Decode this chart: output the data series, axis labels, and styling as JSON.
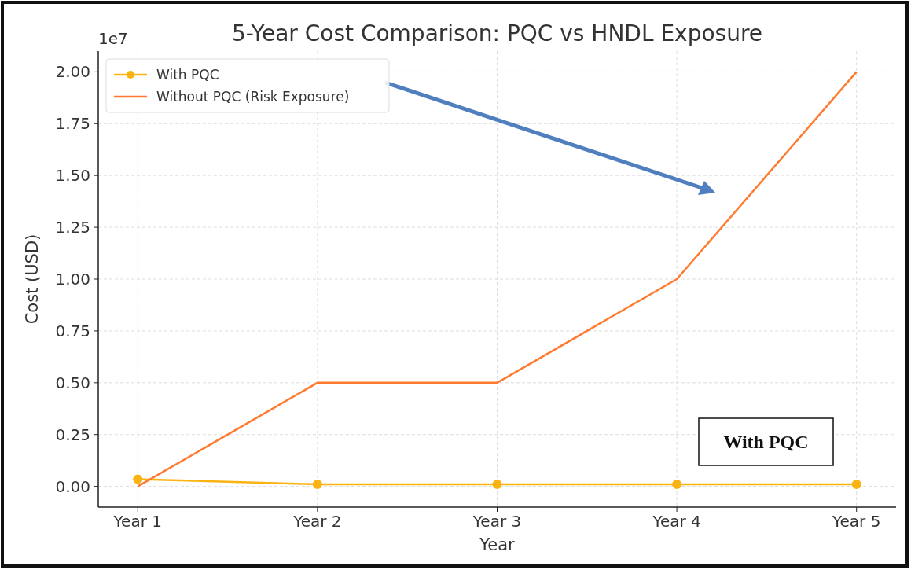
{
  "chart_data": {
    "type": "line",
    "title": "5-Year Cost Comparison: PQC vs HNDL Exposure",
    "xlabel": "Year",
    "ylabel": "Cost (USD)",
    "categories": [
      "Year 1",
      "Year 2",
      "Year 3",
      "Year 4",
      "Year 5"
    ],
    "series": [
      {
        "name": "With PQC",
        "color": "#fbb313",
        "marker": "circle",
        "values": [
          0.035,
          0.01,
          0.01,
          0.01,
          0.01
        ]
      },
      {
        "name": "Without PQC (Risk Exposure)",
        "color": "#ff7a2f",
        "marker": "none",
        "values": [
          0,
          0.5,
          0.5,
          1.0,
          2.0
        ]
      }
    ],
    "ylim": [
      -0.1,
      2.1
    ],
    "yticks": [
      {
        "value": 0,
        "label": "0.00"
      },
      {
        "value": 0.25,
        "label": "0.25"
      },
      {
        "value": 0.5,
        "label": "0.50"
      },
      {
        "value": 0.75,
        "label": "0.75"
      },
      {
        "value": 1,
        "label": "1.00"
      },
      {
        "value": 1.25,
        "label": "1.25"
      },
      {
        "value": 1.5,
        "label": "1.50"
      },
      {
        "value": 1.75,
        "label": "1.75"
      },
      {
        "value": 2,
        "label": "2.00"
      }
    ],
    "annotations": [
      "1e7",
      "With PQC"
    ],
    "grid": true,
    "legend": "top left",
    "line_style": "solid"
  }
}
